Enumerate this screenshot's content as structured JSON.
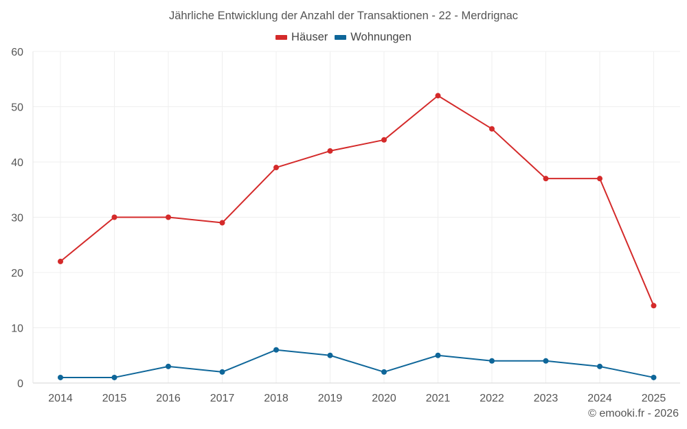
{
  "chart_data": {
    "type": "line",
    "title": "Jährliche Entwicklung der Anzahl der Transaktionen - 22 - Merdrignac",
    "categories": [
      "2014",
      "2015",
      "2016",
      "2017",
      "2018",
      "2019",
      "2020",
      "2021",
      "2022",
      "2023",
      "2024",
      "2025"
    ],
    "series": [
      {
        "name": "Häuser",
        "color": "#d42a2a",
        "values": [
          22,
          30,
          30,
          29,
          39,
          42,
          44,
          52,
          46,
          37,
          37,
          14
        ]
      },
      {
        "name": "Wohnungen",
        "color": "#0e6699",
        "values": [
          1,
          1,
          3,
          2,
          6,
          5,
          2,
          5,
          4,
          4,
          3,
          1
        ]
      }
    ],
    "y_ticks": [
      0,
      10,
      20,
      30,
      40,
      50,
      60
    ],
    "ylim": [
      0,
      60
    ],
    "grid": true,
    "legend_position": "top-center",
    "xlabel": "",
    "ylabel": ""
  },
  "credit": "© emooki.fr - 2026"
}
